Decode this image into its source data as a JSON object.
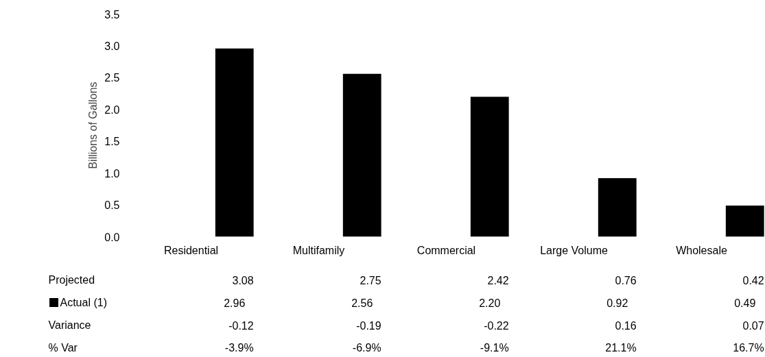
{
  "chart_data": {
    "type": "bar",
    "ylabel": "Billions of Gallons",
    "categories": [
      "Residential",
      "Multifamily",
      "Commercial",
      "Large Volume",
      "Wholesale"
    ],
    "series": [
      {
        "name": "Actual (1)",
        "color": "#000000",
        "values": [
          2.96,
          2.56,
          2.2,
          0.92,
          0.49
        ],
        "value_labels": [
          "2.96",
          "2.56",
          "2.20",
          "0.92",
          "0.49"
        ]
      }
    ],
    "ylim": [
      0,
      3.5
    ],
    "yticks": [
      {
        "value": 0,
        "label": "0.0"
      },
      {
        "value": 0.5,
        "label": "0.5"
      },
      {
        "value": 1,
        "label": "1.0"
      },
      {
        "value": 1.5,
        "label": "1.5"
      },
      {
        "value": 2,
        "label": "2.0"
      },
      {
        "value": 2.5,
        "label": "2.5"
      },
      {
        "value": 3,
        "label": "3.0"
      },
      {
        "value": 3.5,
        "label": "3.5"
      }
    ],
    "grid": false,
    "legend": "bottom",
    "annotations": [
      "Projected",
      "3.08",
      "2.75",
      "2.42",
      "0.76",
      "0.42",
      "Variance",
      "-0.12",
      "-0.19",
      "-0.22",
      "0.16",
      "0.07",
      "% Var",
      "-3.9%",
      "-6.9%",
      "-9.1%",
      "21.1%",
      "16.7%"
    ]
  }
}
